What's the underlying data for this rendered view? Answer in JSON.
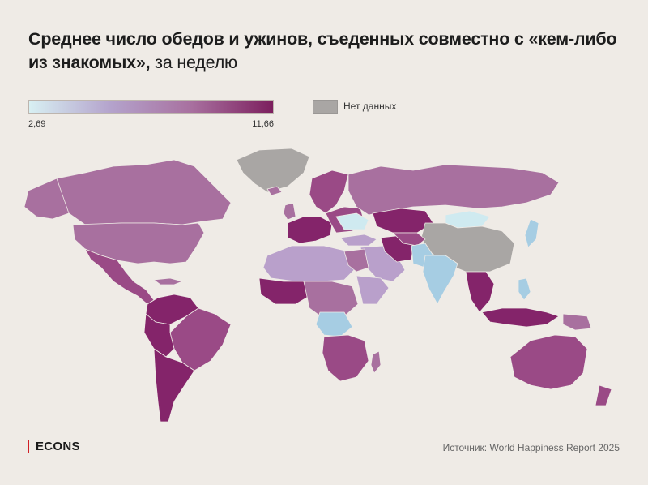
{
  "title": {
    "bold": "Среднее число обедов и ужинов, съеденных совместно с «кем-либо из знакомых»,",
    "tail": " за неделю"
  },
  "legend": {
    "min_label": "2,69",
    "max_label": "11,66",
    "min_value": 2.69,
    "max_value": 11.66,
    "gradient": [
      "#d8f0f3",
      "#b4a3cc",
      "#a8709f",
      "#7c1f5e"
    ],
    "nodata_label": "Нет данных",
    "nodata_color": "#a9a6a4"
  },
  "colors": {
    "background": "#efebe6",
    "border": "#efebe6",
    "high": "#84246a",
    "mid_high": "#9a4a86",
    "mid": "#a8709f",
    "mid_low": "#b9a0cb",
    "low": "#a6cde3",
    "lowest": "#cfeaf0",
    "nodata": "#a9a6a4"
  },
  "brand": {
    "logo": "ECONS",
    "accent": "#d11f26"
  },
  "source": "Источник: World Happiness Report 2025"
}
